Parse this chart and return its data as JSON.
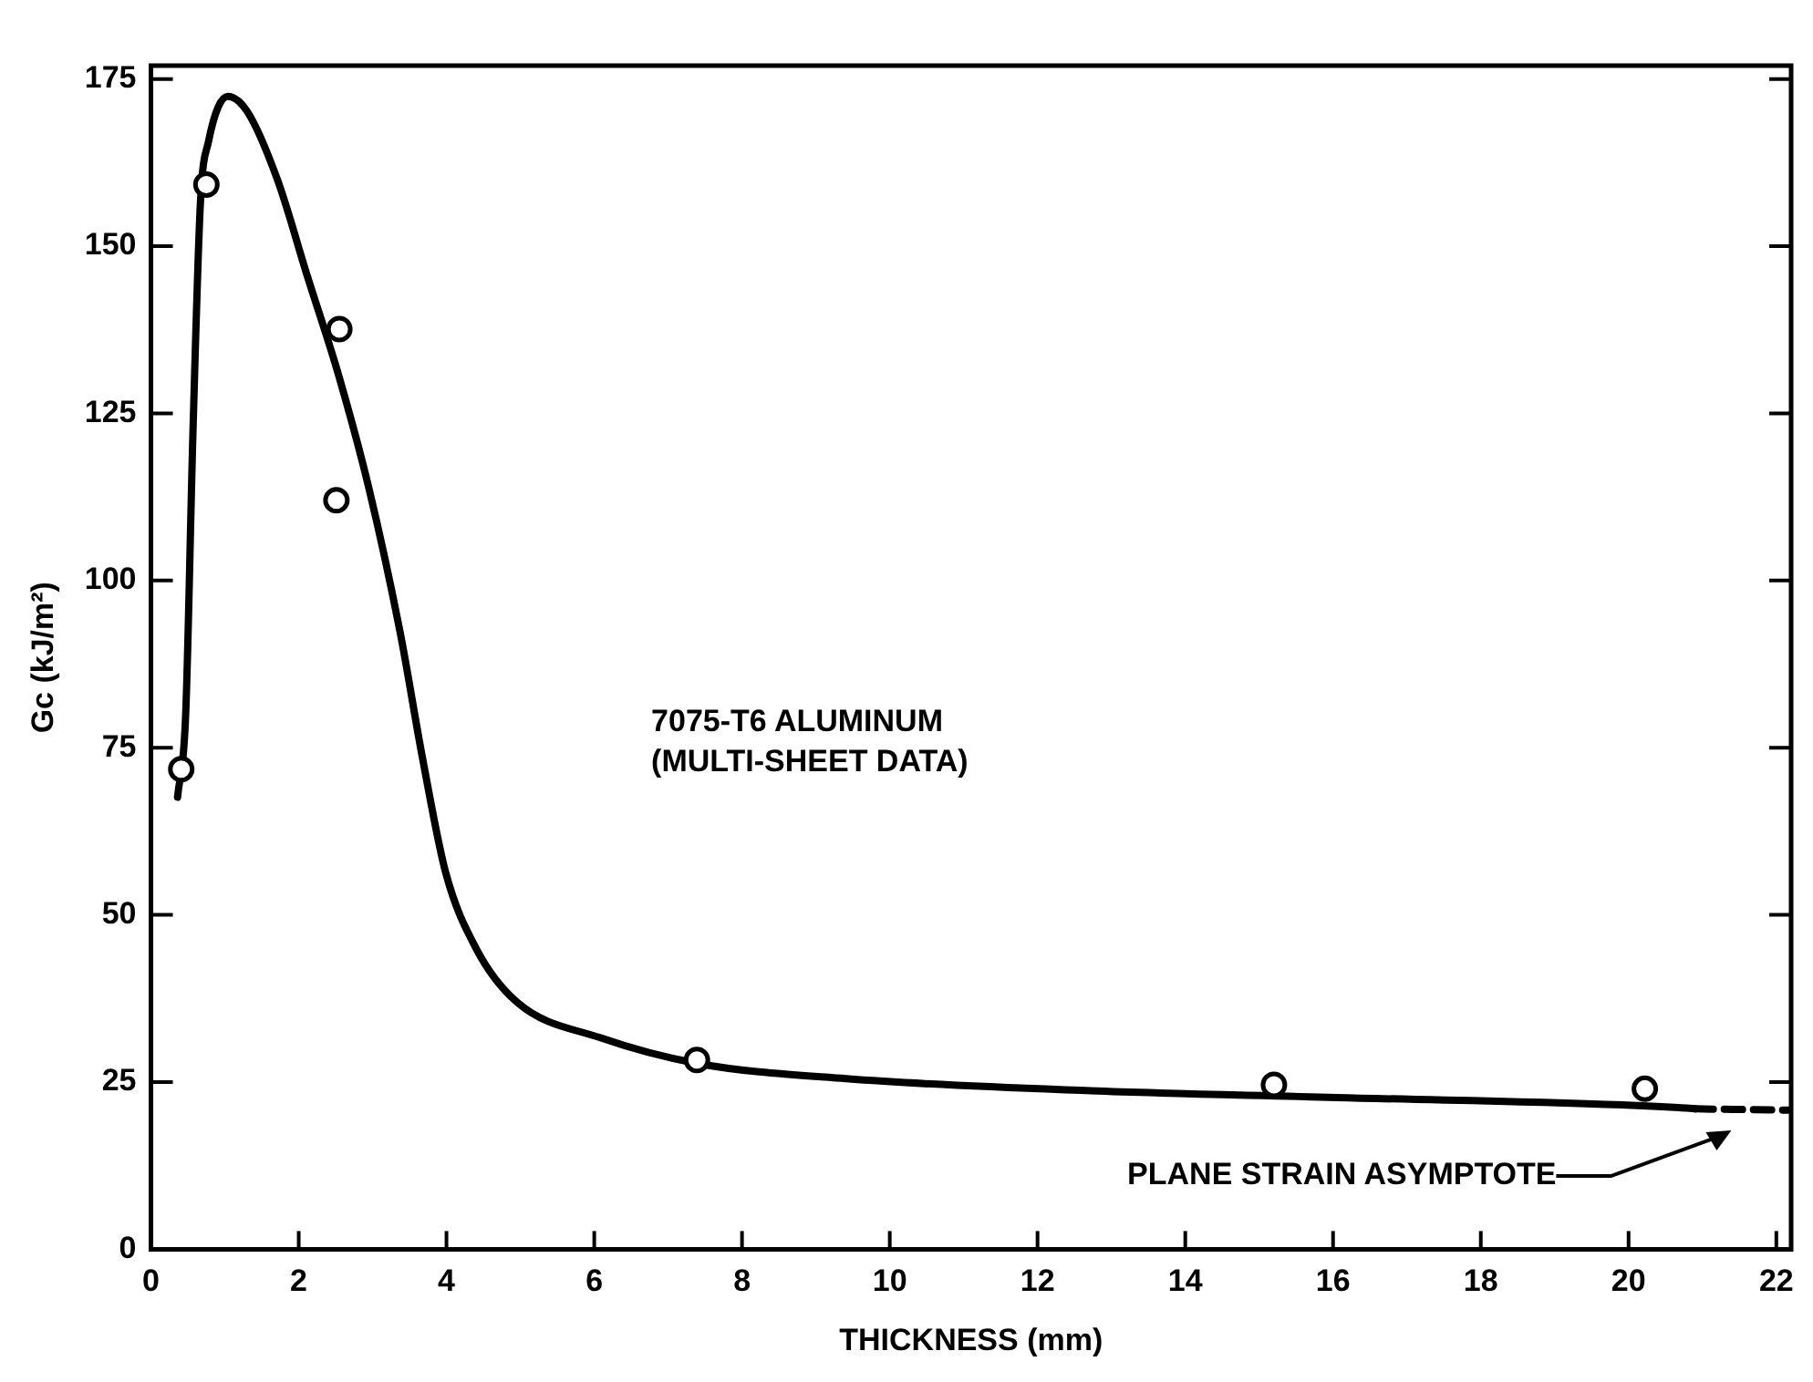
{
  "chart_data": {
    "type": "scatter",
    "xlabel": "THICKNESS (mm)",
    "ylabel": "Gc (kJ/m²)",
    "xlim": [
      0,
      22.2
    ],
    "ylim": [
      0,
      177
    ],
    "xticks": [
      0,
      2,
      4,
      6,
      8,
      10,
      12,
      14,
      16,
      18,
      20,
      22
    ],
    "yticks": [
      0,
      25,
      50,
      75,
      100,
      125,
      150,
      175
    ],
    "grid": false,
    "legend": false,
    "series": [
      {
        "type": "line",
        "color": "#000000",
        "marker": "none",
        "line_style": "solid",
        "x": [
          0.36,
          0.47,
          0.57,
          0.67,
          0.78,
          1.04,
          1.3,
          1.71,
          2.12,
          2.54,
          2.95,
          3.37,
          3.68,
          3.99,
          4.4,
          4.95,
          6.09,
          7.39,
          9.41,
          12.72,
          16.04,
          20.68,
          20.9
        ],
        "values": [
          67.6,
          80,
          122.8,
          156.6,
          165.7,
          172.4,
          170.2,
          160,
          145.4,
          130.7,
          113.8,
          92.4,
          73.2,
          56.3,
          45,
          37,
          31.6,
          27.8,
          25.5,
          23.7,
          22.7,
          21.2,
          21
        ]
      },
      {
        "type": "line",
        "color": "#000000",
        "marker": "none",
        "line_style": "dashed",
        "x": [
          20.9,
          22.2
        ],
        "values": [
          21,
          20.8
        ]
      },
      {
        "type": "scatter",
        "color": "#000000",
        "marker": "circle",
        "x": [
          0.41,
          0.75,
          2.55,
          2.51,
          7.39,
          15.2,
          20.22
        ],
        "values": [
          71.8,
          159.2,
          137.6,
          112,
          28.3,
          24.6,
          24.0
        ]
      }
    ],
    "annotations": [
      "7075-T6 ALUMINUM\n(MULTI-SHEET DATA)",
      "PLANE STRAIN ASYMPTOTE"
    ]
  }
}
